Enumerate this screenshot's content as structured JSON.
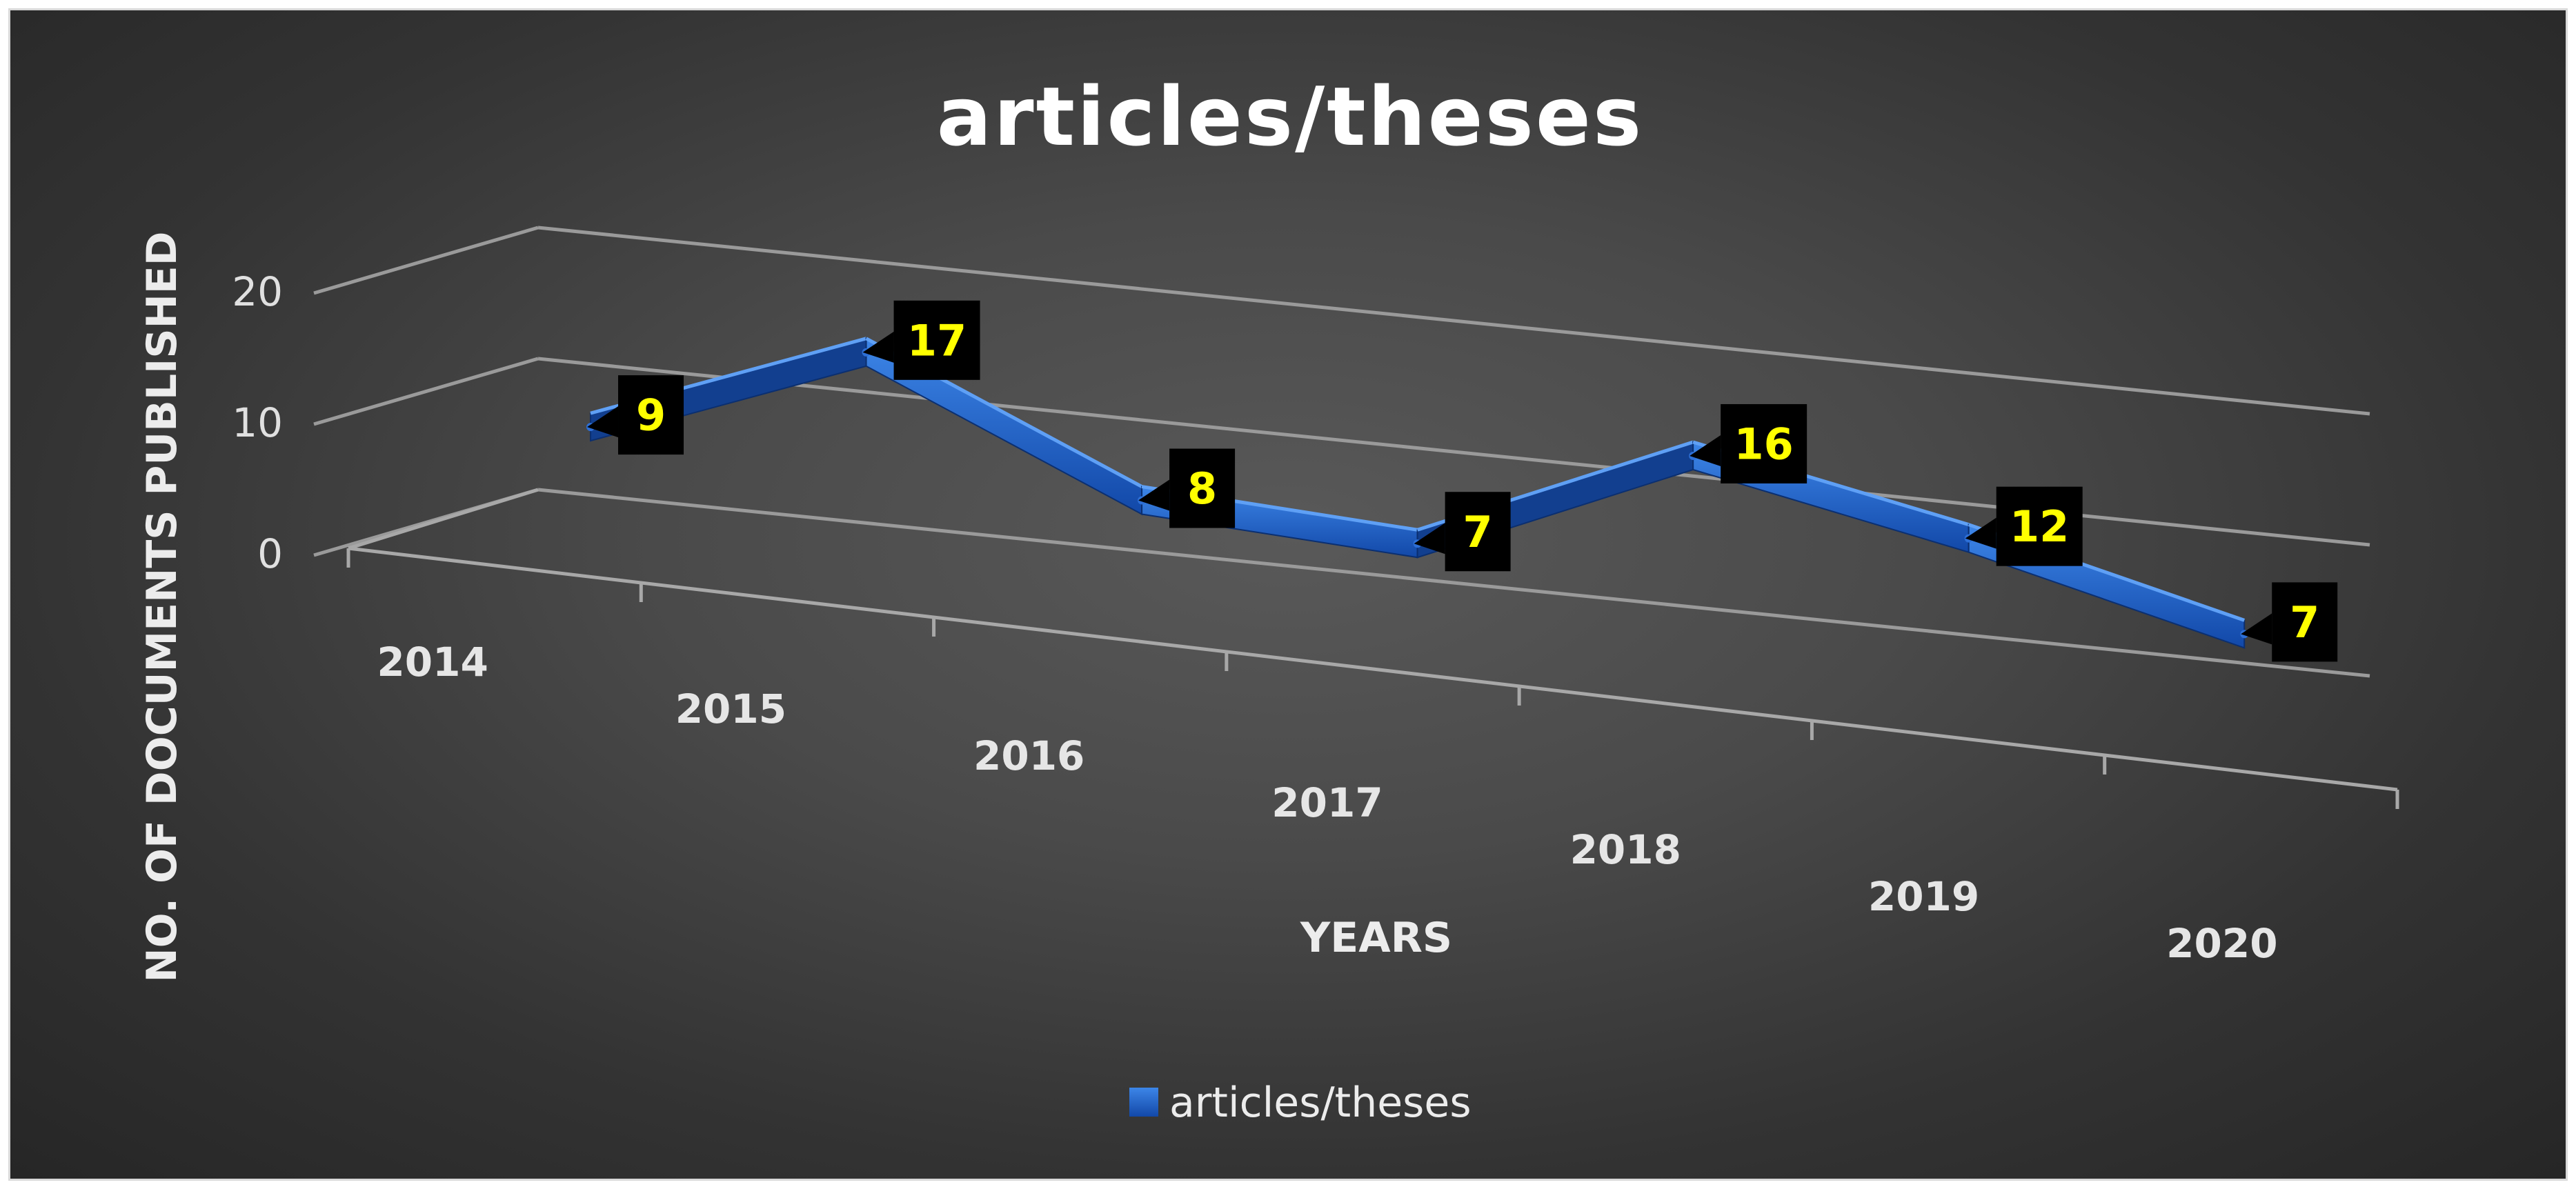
{
  "chart_data": {
    "type": "line",
    "style": "3d-ribbon",
    "title": "articles/theses",
    "xlabel": "YEARS",
    "ylabel": "NO. OF DOCUMENTS PUBLISHED",
    "categories": [
      "2014",
      "2015",
      "2016",
      "2017",
      "2018",
      "2019",
      "2020"
    ],
    "y_ticks": [
      "0",
      "10",
      "20"
    ],
    "ylim": [
      0,
      20
    ],
    "grid": true,
    "legend_position": "bottom",
    "series": [
      {
        "name": "articles/theses",
        "values": [
          9,
          17,
          8,
          7,
          16,
          12,
          7
        ],
        "color": "#1f5fc4"
      }
    ],
    "data_label_style": {
      "background": "#000000",
      "color": "#ffff00"
    }
  }
}
